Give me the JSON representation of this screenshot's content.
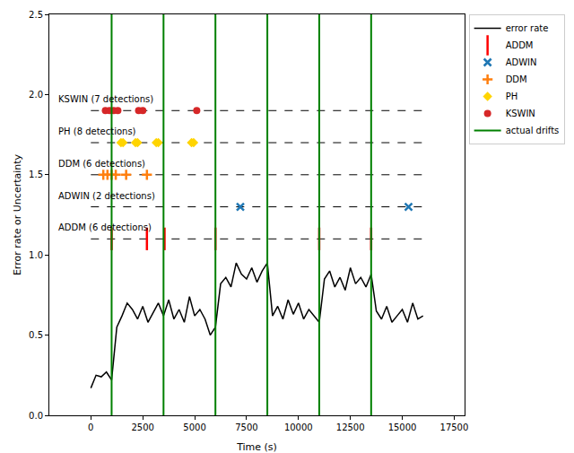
{
  "chart_data": {
    "type": "line",
    "x_label": "Time (s)",
    "y_label": "Error rate or Uncertainty",
    "xlim": [
      -2000,
      18000
    ],
    "ylim": [
      0,
      2.5
    ],
    "xticks": [
      0,
      2500,
      5000,
      7500,
      10000,
      12500,
      15000,
      17500
    ],
    "yticks": [
      {
        "value": 0,
        "label": "0.0"
      },
      {
        "value": 0.5,
        "label": "0.5"
      },
      {
        "value": 1,
        "label": "1.0"
      },
      {
        "value": 1.5,
        "label": "1.5"
      },
      {
        "value": 2,
        "label": "2.0"
      },
      {
        "value": 2.5,
        "label": "2.5"
      }
    ],
    "grid": false,
    "legend": "upper right",
    "error_rate": {
      "name": "error rate",
      "color": "#000000",
      "x": [
        0,
        250,
        500,
        750,
        1000,
        1250,
        1500,
        1750,
        2000,
        2250,
        2500,
        2750,
        3000,
        3250,
        3500,
        3750,
        4000,
        4250,
        4500,
        4750,
        5000,
        5250,
        5500,
        5750,
        6000,
        6250,
        6500,
        6750,
        7000,
        7250,
        7500,
        7750,
        8000,
        8250,
        8500,
        8750,
        9000,
        9250,
        9500,
        9750,
        10000,
        10250,
        10500,
        10750,
        11000,
        11250,
        11500,
        11750,
        12000,
        12250,
        12500,
        12750,
        13000,
        13250,
        13500,
        13750,
        14000,
        14250,
        14500,
        14750,
        15000,
        15250,
        15500,
        15750,
        16000
      ],
      "values": [
        0.17,
        0.25,
        0.24,
        0.27,
        0.22,
        0.55,
        0.62,
        0.7,
        0.66,
        0.6,
        0.68,
        0.58,
        0.64,
        0.7,
        0.62,
        0.72,
        0.6,
        0.66,
        0.58,
        0.74,
        0.62,
        0.66,
        0.6,
        0.5,
        0.55,
        0.82,
        0.86,
        0.8,
        0.95,
        0.88,
        0.85,
        0.92,
        0.83,
        0.9,
        0.95,
        0.62,
        0.68,
        0.6,
        0.72,
        0.63,
        0.7,
        0.6,
        0.66,
        0.62,
        0.58,
        0.85,
        0.9,
        0.8,
        0.86,
        0.78,
        0.92,
        0.82,
        0.86,
        0.8,
        0.88,
        0.65,
        0.6,
        0.68,
        0.58,
        0.62,
        0.66,
        0.58,
        0.7,
        0.6,
        0.62
      ]
    },
    "series": [
      {
        "name": "ADDM",
        "label": "ADDM (6 detections)",
        "level": 1.1,
        "color": "#ff0000",
        "marker": "line-ns",
        "x": [
          1000,
          2700,
          3550,
          6000,
          11000,
          13500
        ]
      },
      {
        "name": "ADWIN",
        "label": "ADWIN (2 detections)",
        "level": 1.3,
        "color": "#1f77b4",
        "marker": "x",
        "x": [
          7200,
          15300
        ]
      },
      {
        "name": "DDM",
        "label": "DDM (6 detections)",
        "level": 1.5,
        "color": "#ff7f0e",
        "marker": "cross",
        "x": [
          600,
          800,
          1000,
          1200,
          1700,
          2700
        ]
      },
      {
        "name": "PH",
        "label": "PH (8 detections)",
        "level": 1.7,
        "color": "#ffd400",
        "marker": "diamond",
        "x": [
          1450,
          1550,
          2150,
          2250,
          3150,
          3250,
          4850,
          4950
        ]
      },
      {
        "name": "KSWIN",
        "label": "KSWIN (7 detections)",
        "level": 1.9,
        "color": "#d62728",
        "marker": "circle",
        "x": [
          700,
          900,
          1100,
          1300,
          2300,
          2500,
          5100
        ]
      }
    ],
    "drifts": {
      "name": "actual drifts",
      "color": "#008000",
      "x": [
        1000,
        3500,
        6000,
        8500,
        11000,
        13500
      ]
    }
  }
}
